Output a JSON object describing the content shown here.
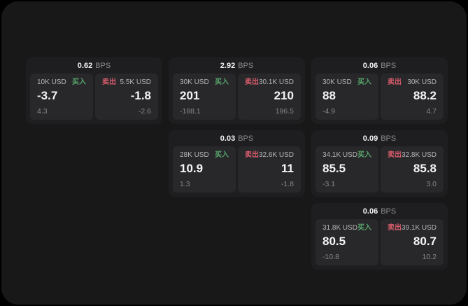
{
  "labels": {
    "bps": "BPS",
    "buy": "买入",
    "sell": "卖出"
  },
  "colors": {
    "buy_green": "#57a56b",
    "sell_red": "#d85c6b",
    "page_bg": "#181818",
    "card_bg": "#1e1e20",
    "tile_bg": "#28282b"
  },
  "cards": [
    {
      "bps": "0.62",
      "buy": {
        "amount": "10K USD",
        "price": "-3.7",
        "delta": "4.3"
      },
      "sell": {
        "amount": "5.5K USD",
        "price": "-1.8",
        "delta": "-2.6"
      }
    },
    {
      "bps": "2.92",
      "buy": {
        "amount": "30K USD",
        "price": "201",
        "delta": "-188.1"
      },
      "sell": {
        "amount": "30.1K USD",
        "price": "210",
        "delta": "196.5"
      }
    },
    {
      "bps": "0.06",
      "buy": {
        "amount": "30K USD",
        "price": "88",
        "delta": "-4.9"
      },
      "sell": {
        "amount": "30K USD",
        "price": "88.2",
        "delta": "4.7"
      }
    },
    {
      "bps": "0.03",
      "buy": {
        "amount": "28K USD",
        "price": "10.9",
        "delta": "1.3"
      },
      "sell": {
        "amount": "32.6K USD",
        "price": "11",
        "delta": "-1.8"
      }
    },
    {
      "bps": "0.09",
      "buy": {
        "amount": "34.1K USD",
        "price": "85.5",
        "delta": "-3.1"
      },
      "sell": {
        "amount": "32.8K USD",
        "price": "85.8",
        "delta": "3.0"
      }
    },
    {
      "bps": "0.06",
      "buy": {
        "amount": "31.8K USD",
        "price": "80.5",
        "delta": "-10.8"
      },
      "sell": {
        "amount": "39.1K USD",
        "price": "80.7",
        "delta": "10.2"
      }
    }
  ]
}
